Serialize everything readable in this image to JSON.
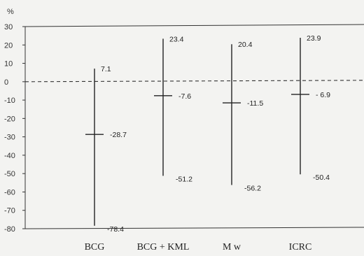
{
  "chart_data": {
    "type": "range",
    "unit_label": "%",
    "ylim": [
      -80,
      30
    ],
    "yticks": [
      "30",
      "20",
      "10",
      "0",
      "-10",
      "-20",
      "-30",
      "-40",
      "-50",
      "-60",
      "-70",
      "-80"
    ],
    "reference_line": {
      "value": 0,
      "style": "dashed"
    },
    "categories": [
      "BCG",
      "BCG + KML",
      "M w",
      "ICRC"
    ],
    "series": [
      {
        "values": [
          {
            "estimate": -28.7,
            "upper": 7.1,
            "lower": -78.4,
            "estimate_label": "-28.7",
            "upper_label": "7.1",
            "lower_label": "-78.4"
          },
          {
            "estimate": -7.6,
            "upper": 23.4,
            "lower": -51.2,
            "estimate_label": "-7.6",
            "upper_label": "23.4",
            "lower_label": "-51.2"
          },
          {
            "estimate": -11.5,
            "upper": 20.4,
            "lower": -56.2,
            "estimate_label": "-11.5",
            "upper_label": "20.4",
            "lower_label": "-56.2"
          },
          {
            "estimate": -6.9,
            "upper": 23.9,
            "lower": -50.4,
            "estimate_label": "- 6.9",
            "upper_label": "23.9",
            "lower_label": "-50.4"
          }
        ]
      }
    ]
  }
}
